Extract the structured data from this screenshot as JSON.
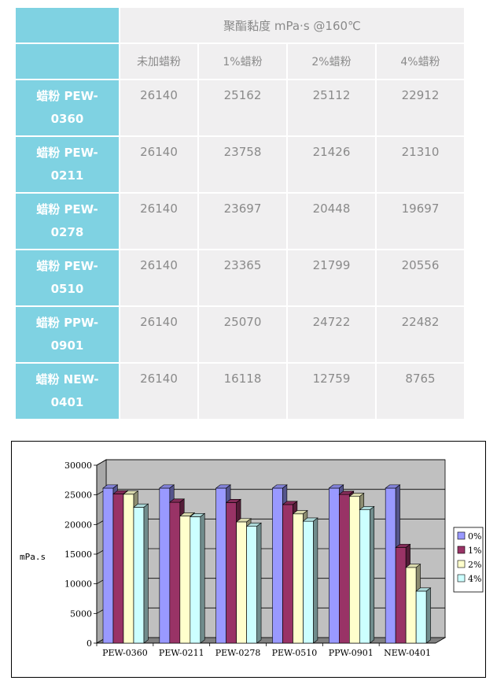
{
  "table": {
    "title": "聚酯黏度 mPa·s @160℃",
    "headers": [
      "未加蜡粉",
      "1%蜡粉",
      "2%蜡粉",
      "4%蜡粉"
    ],
    "rows": [
      {
        "line1": "蜡粉 PEW-",
        "line2": "0360",
        "values": [
          "26140",
          "25162",
          "25112",
          "22912"
        ]
      },
      {
        "line1": "蜡粉 PEW-",
        "line2": "0211",
        "values": [
          "26140",
          "23758",
          "21426",
          "21310"
        ]
      },
      {
        "line1": "蜡粉 PEW-",
        "line2": "0278",
        "values": [
          "26140",
          "23697",
          "20448",
          "19697"
        ]
      },
      {
        "line1": "蜡粉 PEW-",
        "line2": "0510",
        "values": [
          "26140",
          "23365",
          "21799",
          "20556"
        ]
      },
      {
        "line1": "蜡粉 PPW-",
        "line2": "0901",
        "values": [
          "26140",
          "25070",
          "24722",
          "22482"
        ]
      },
      {
        "line1": "蜡粉 NEW-",
        "line2": "0401",
        "values": [
          "26140",
          "16118",
          "12759",
          "8765"
        ]
      }
    ]
  },
  "chart_data": {
    "type": "bar",
    "title": "",
    "xlabel": "",
    "ylabel": "mPa.s",
    "ylim": [
      0,
      30000
    ],
    "yticks": [
      "0",
      "5000",
      "10000",
      "15000",
      "20000",
      "25000",
      "30000"
    ],
    "grid": true,
    "legend_position": "right",
    "categories": [
      "PEW-0360",
      "PEW-0211",
      "PEW-0278",
      "PEW-0510",
      "PPW-0901",
      "NEW-0401"
    ],
    "series": [
      {
        "name": "0%",
        "color": "#9999ff",
        "values": [
          26140,
          26140,
          26140,
          26140,
          26140,
          26140
        ]
      },
      {
        "name": "1%",
        "color": "#993366",
        "values": [
          25162,
          23758,
          23697,
          23365,
          25070,
          16118
        ]
      },
      {
        "name": "2%",
        "color": "#ffffcc",
        "values": [
          25112,
          21426,
          20448,
          21799,
          24722,
          12759
        ]
      },
      {
        "name": "4%",
        "color": "#ccffff",
        "values": [
          22912,
          21310,
          19697,
          20556,
          22482,
          8765
        ]
      }
    ]
  },
  "colors": {
    "table_accent": "#7fd2e2",
    "table_cell": "#f0eff0",
    "plot_wall": "#c0c0c0"
  }
}
